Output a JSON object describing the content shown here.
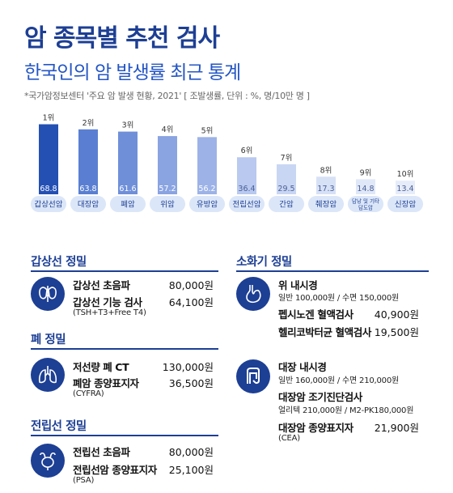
{
  "header": {
    "title": "암 종목별 추천 검사",
    "subtitle": "한국인의 암 발생률 최근 통계",
    "source": "*국가암정보센터 '주요 암 발생 현황, 2021' [ 조발생률, 단위 : %, 명/10만 명 ]"
  },
  "chart_data": {
    "type": "bar",
    "title": "",
    "xlabel": "",
    "ylabel": "",
    "ylim": [
      0,
      70
    ],
    "grid": false,
    "categories": [
      "갑상선암",
      "대장암",
      "폐암",
      "위암",
      "유방암",
      "전립선암",
      "간암",
      "췌장암",
      "담낭 및 기타 담도암",
      "신장암"
    ],
    "ranks": [
      "1위",
      "2위",
      "3위",
      "4위",
      "5위",
      "6위",
      "7위",
      "8위",
      "9위",
      "10위"
    ],
    "values": [
      68.8,
      63.8,
      61.6,
      57.2,
      56.2,
      36.4,
      29.5,
      17.3,
      14.8,
      13.4
    ],
    "value_labels": [
      "68.8",
      "63.8",
      "61.6",
      "57.2",
      "56.2",
      "36.4",
      "29.5",
      "17.3",
      "14.8",
      "13.4"
    ],
    "colors": [
      "#2450b4",
      "#5a7fd2",
      "#6f8fd9",
      "#8aa4e2",
      "#9db3e7",
      "#b9c9ef",
      "#c9d6f3",
      "#d7e1f6",
      "#e0e8f8",
      "#e6ecf9"
    ]
  },
  "sections": {
    "thyroid": {
      "title": "갑상선 정밀",
      "icon": "thyroid-icon",
      "items": [
        {
          "name": "갑상선 초음파",
          "price": "80,000원"
        },
        {
          "name": "갑상선 기능 검사",
          "price": "64,100원",
          "note": "(TSH+T3+Free T4)"
        }
      ]
    },
    "lung": {
      "title": "폐 정밀",
      "icon": "lungs-icon",
      "items": [
        {
          "name": "저선량 폐 CT",
          "price": "130,000원"
        },
        {
          "name": "폐암 종양표지자",
          "price": "36,500원",
          "note": "(CYFRA)"
        }
      ]
    },
    "prostate": {
      "title": "전립선 정밀",
      "icon": "prostate-icon",
      "items": [
        {
          "name": "전립선 초음파",
          "price": "80,000원"
        },
        {
          "name": "전립선암 종양표지자",
          "price": "25,100원",
          "note": "(PSA)"
        }
      ]
    },
    "digestive": {
      "title": "소화기 정밀",
      "stomach_icon": "stomach-icon",
      "colon_icon": "colon-icon",
      "stomach": {
        "endoscopy": {
          "name": "위 내시경",
          "note": "일반 100,000원 / 수면 150,000원"
        },
        "pepsinogen": {
          "name": "펩시노겐 혈액검사",
          "price": "40,900원"
        },
        "hpylori": {
          "name": "헬리코박터균 혈액검사",
          "price": "19,500원"
        }
      },
      "colon": {
        "endoscopy": {
          "name": "대장 내시경",
          "note": "일반 160,000원 / 수면 210,000원"
        },
        "early": {
          "name": "대장암 조기진단검사",
          "note": "얼리텍 210,000원 / M2-PK180,000원"
        },
        "marker": {
          "name": "대장암 종양표지자",
          "price": "21,900원",
          "note": "(CEA)"
        }
      }
    }
  }
}
